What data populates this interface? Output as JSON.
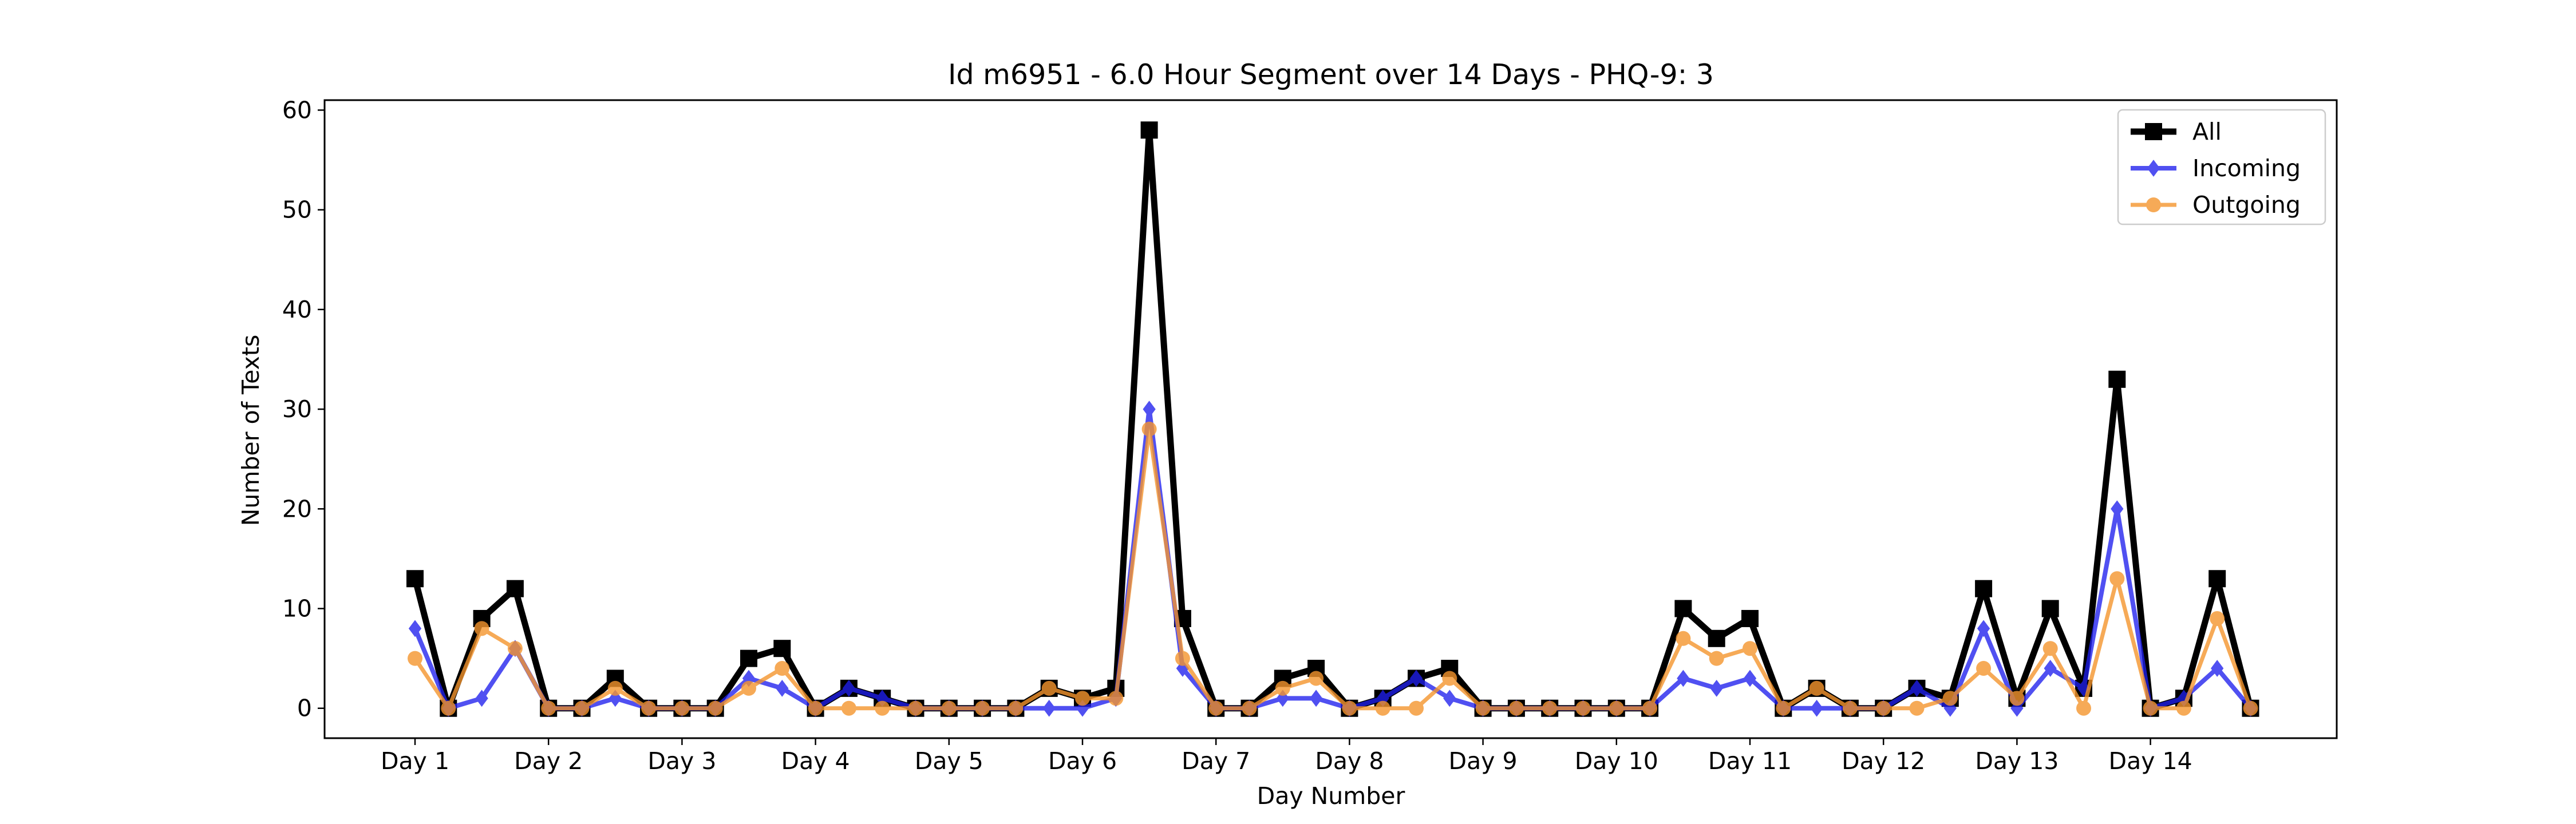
{
  "chart_data": {
    "type": "line",
    "title": "Id m6951 - 6.0 Hour Segment over 14 Days - PHQ-9: 3",
    "xlabel": "Day Number",
    "ylabel": "Number of Texts",
    "xticks": [
      "Day 1",
      "Day 2",
      "Day 3",
      "Day 4",
      "Day 5",
      "Day 6",
      "Day 7",
      "Day 8",
      "Day 9",
      "Day 10",
      "Day 11",
      "Day 12",
      "Day 13",
      "Day 14"
    ],
    "yticks": [
      0,
      10,
      20,
      30,
      40,
      50,
      60
    ],
    "ylim": [
      -3,
      61
    ],
    "grid": false,
    "legend_position": "top-right",
    "series": [
      {
        "name": "All",
        "color": "#000000",
        "marker": "square",
        "values": [
          13,
          0,
          9,
          12,
          0,
          0,
          3,
          0,
          0,
          0,
          5,
          6,
          0,
          2,
          1,
          0,
          0,
          0,
          0,
          2,
          1,
          2,
          58,
          9,
          0,
          0,
          3,
          4,
          0,
          1,
          3,
          4,
          0,
          0,
          0,
          0,
          0,
          0,
          10,
          7,
          9,
          0,
          2,
          0,
          0,
          2,
          1,
          12,
          1,
          10,
          2,
          33,
          0,
          1,
          13,
          0
        ]
      },
      {
        "name": "Incoming",
        "color": "#1f1fee",
        "marker": "diamond",
        "values": [
          8,
          0,
          1,
          6,
          0,
          0,
          1,
          0,
          0,
          0,
          3,
          2,
          0,
          2,
          1,
          0,
          0,
          0,
          0,
          0,
          0,
          1,
          30,
          4,
          0,
          0,
          1,
          1,
          0,
          1,
          3,
          1,
          0,
          0,
          0,
          0,
          0,
          0,
          3,
          2,
          3,
          0,
          0,
          0,
          0,
          2,
          0,
          8,
          0,
          4,
          2,
          20,
          0,
          1,
          4,
          0
        ]
      },
      {
        "name": "Outgoing",
        "color": "#f5952e",
        "marker": "circle",
        "values": [
          5,
          0,
          8,
          6,
          0,
          0,
          2,
          0,
          0,
          0,
          2,
          4,
          0,
          0,
          0,
          0,
          0,
          0,
          0,
          2,
          1,
          1,
          28,
          5,
          0,
          0,
          2,
          3,
          0,
          0,
          0,
          3,
          0,
          0,
          0,
          0,
          0,
          0,
          7,
          5,
          6,
          0,
          2,
          0,
          0,
          0,
          1,
          4,
          1,
          6,
          0,
          13,
          0,
          0,
          9,
          0
        ]
      }
    ]
  }
}
